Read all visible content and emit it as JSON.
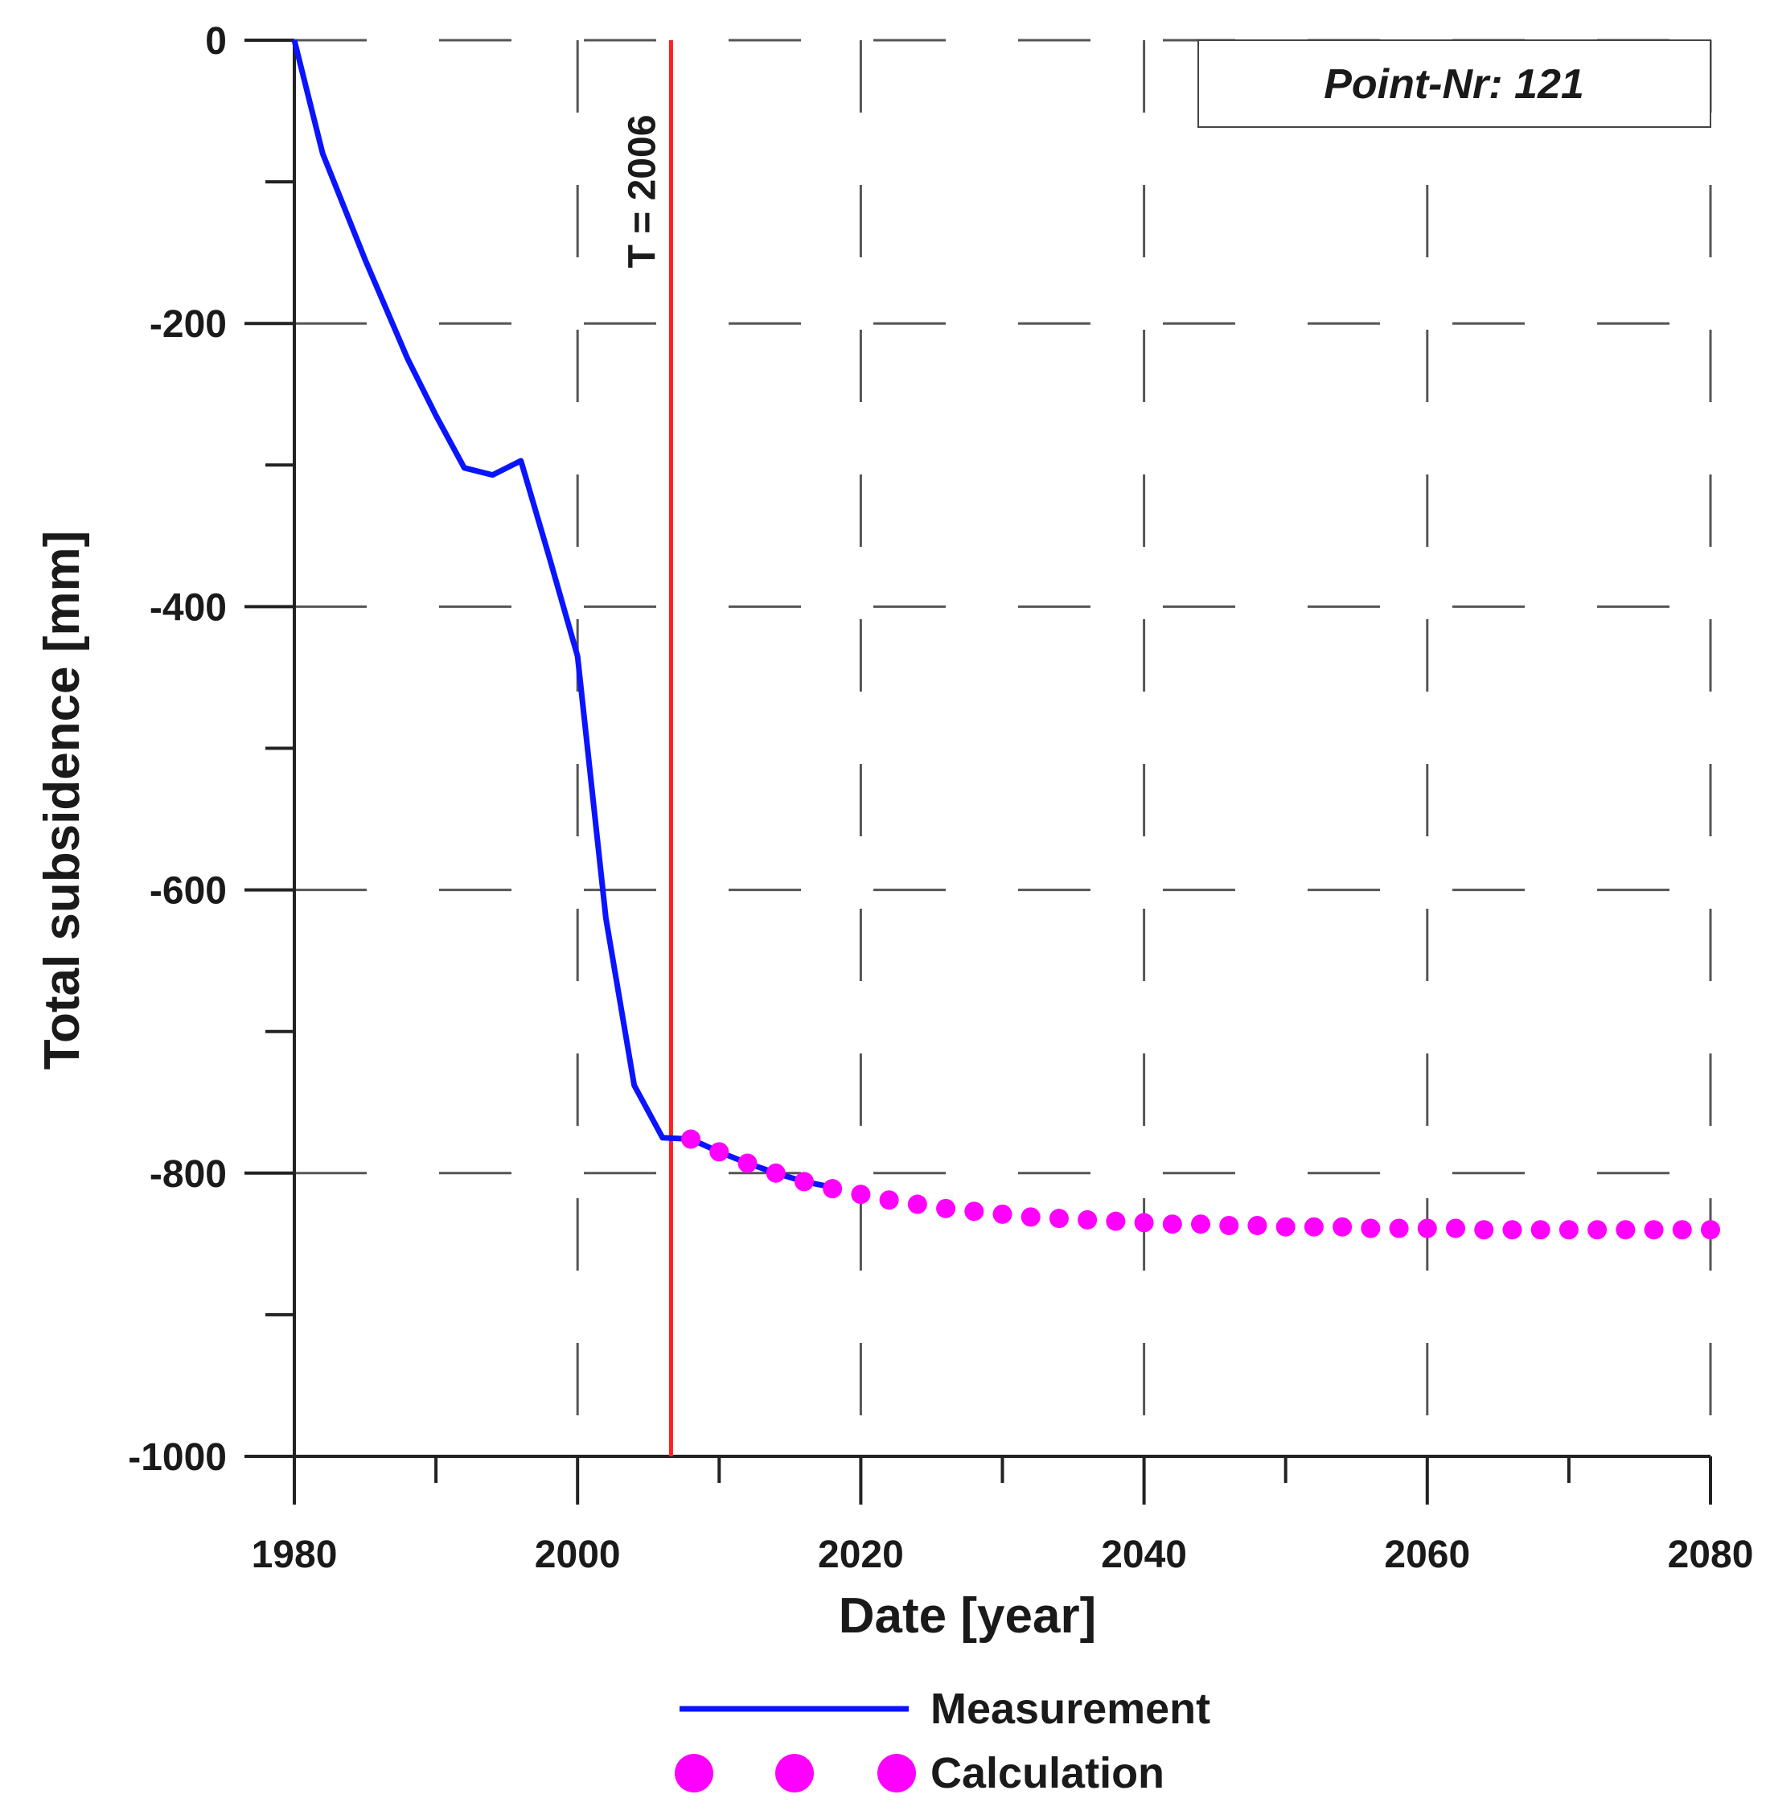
{
  "chart_data": {
    "type": "line",
    "title": "",
    "xlabel": "Date [year]",
    "ylabel": "Total subsidence [mm]",
    "xlim": [
      1980,
      2080
    ],
    "ylim": [
      -1000,
      0
    ],
    "x_ticks": [
      1980,
      2000,
      2020,
      2040,
      2060,
      2080
    ],
    "x_minor_step": 10,
    "y_ticks": [
      0,
      -200,
      -400,
      -600,
      -800,
      -1000
    ],
    "y_minor_step": 100,
    "grid": true,
    "grid_style": "dashed",
    "legend_position": "bottom-center",
    "annotation_box": "Point-Nr: 121",
    "vertical_line": {
      "x": 2006.6,
      "label": "T = 2006",
      "color": "#ff2020"
    },
    "series": [
      {
        "name": "Measurement",
        "style": "line",
        "color": "#0a14ff",
        "x": [
          1980,
          1982,
          1985,
          1988,
          1990,
          1992,
          1994,
          1996,
          1998,
          2000,
          2002,
          2004,
          2006,
          2008,
          2010,
          2012,
          2014,
          2016,
          2018
        ],
        "y": [
          0,
          -80,
          -155,
          -225,
          -265,
          -302,
          -307,
          -297,
          -365,
          -435,
          -620,
          -738,
          -775,
          -776,
          -785,
          -793,
          -800,
          -806,
          -810
        ]
      },
      {
        "name": "Calculation",
        "style": "dots",
        "color": "#ff00ff",
        "x": [
          2008,
          2010,
          2012,
          2014,
          2016,
          2018,
          2020,
          2022,
          2024,
          2026,
          2028,
          2030,
          2032,
          2034,
          2036,
          2038,
          2040,
          2042,
          2044,
          2046,
          2048,
          2050,
          2052,
          2054,
          2056,
          2058,
          2060,
          2062,
          2064,
          2066,
          2068,
          2070,
          2072,
          2074,
          2076,
          2078,
          2080
        ],
        "y": [
          -776,
          -785,
          -793,
          -800,
          -806,
          -811,
          -815,
          -819,
          -822,
          -825,
          -827,
          -829,
          -831,
          -832,
          -833,
          -834,
          -835,
          -836,
          -836,
          -837,
          -837,
          -838,
          -838,
          -838,
          -839,
          -839,
          -839,
          -839,
          -840,
          -840,
          -840,
          -840,
          -840,
          -840,
          -840,
          -840,
          -840
        ]
      }
    ]
  }
}
